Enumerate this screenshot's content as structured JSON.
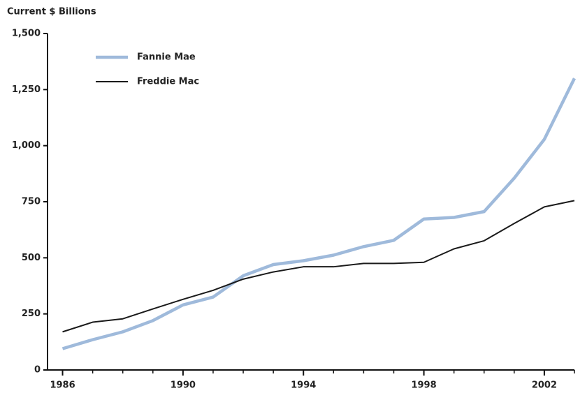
{
  "chart_data": {
    "type": "line",
    "y_label": "Current $ Billions",
    "x": [
      1986,
      1987,
      1988,
      1989,
      1990,
      1991,
      1992,
      1993,
      1994,
      1995,
      1996,
      1997,
      1998,
      1999,
      2000,
      2001,
      2002,
      2003
    ],
    "series": [
      {
        "name": "Fannie Mae",
        "color": "#9fbadb",
        "width": 4.5,
        "values": [
          95,
          135,
          170,
          220,
          290,
          325,
          420,
          470,
          487,
          512,
          550,
          578,
          673,
          680,
          706,
          855,
          1028,
          1300
        ]
      },
      {
        "name": "Freddie Mac",
        "color": "#1a1a1a",
        "width": 2,
        "values": [
          170,
          213,
          228,
          272,
          315,
          355,
          405,
          437,
          460,
          460,
          475,
          475,
          480,
          540,
          576,
          653,
          727,
          755
        ]
      }
    ],
    "xlim": [
      1985.5,
      2003
    ],
    "xticks": [
      1986,
      1990,
      1994,
      1998,
      2002
    ],
    "ylim": [
      0,
      1500
    ],
    "yticks": [
      0,
      250,
      500,
      750,
      {
        "value": 1000,
        "label": "1,000"
      },
      {
        "value": 1250,
        "label": "1,250"
      },
      {
        "value": 1500,
        "label": "1,500"
      }
    ],
    "grid": false,
    "legend": "upper-left"
  }
}
